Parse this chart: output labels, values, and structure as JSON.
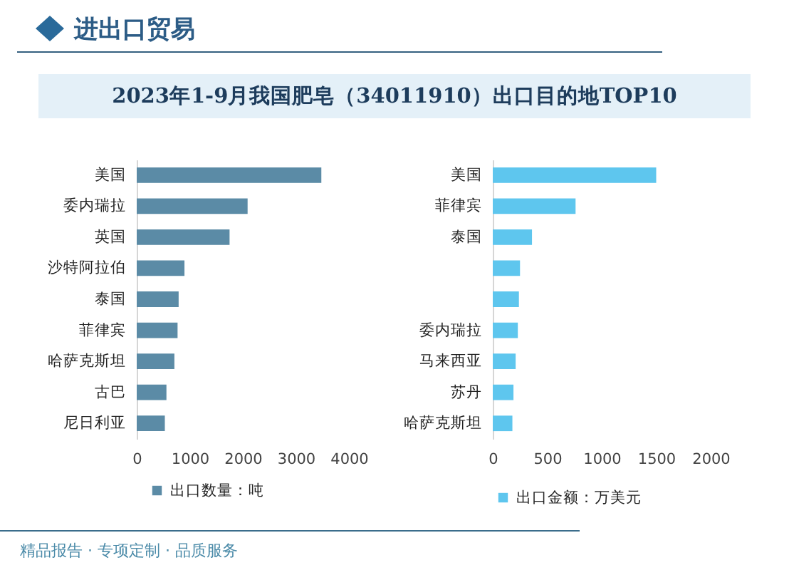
{
  "chart_data": [
    {
      "type": "bar",
      "orientation": "horizontal",
      "title": "2023年1-9月我国肥皂（34011910）出口目的地TOP10",
      "annotations": [
        "进出口贸易",
        "精品报告 · 专项定制 · 品质服务"
      ],
      "categories": [
        "美国",
        "委内瑞拉",
        "英国",
        "沙特阿拉伯",
        "泰国",
        "菲律宾",
        "哈萨克斯坦",
        "古巴",
        "尼日利亚"
      ],
      "series": [
        {
          "name": "出口数量：吨",
          "color": "#5b8ba6",
          "values": [
            3480,
            2090,
            1750,
            900,
            790,
            770,
            710,
            560,
            530
          ]
        }
      ],
      "xlim": [
        0,
        4000
      ],
      "xticks": [
        0,
        1000,
        2000,
        3000,
        4000
      ],
      "legend": "bottom"
    },
    {
      "type": "bar",
      "orientation": "horizontal",
      "categories": [
        "美国",
        "菲律宾",
        "泰国",
        null,
        null,
        "委内瑞拉",
        "马来西亚",
        "苏丹",
        "哈萨克斯坦"
      ],
      "series": [
        {
          "name": "出口金额：万美元",
          "color": "#5ec6ee",
          "values": [
            1500,
            760,
            360,
            250,
            240,
            230,
            210,
            190,
            180
          ]
        }
      ],
      "xlim": [
        0,
        2000
      ],
      "xticks": [
        0,
        500,
        1000,
        1500,
        2000
      ],
      "legend": "bottom"
    }
  ]
}
